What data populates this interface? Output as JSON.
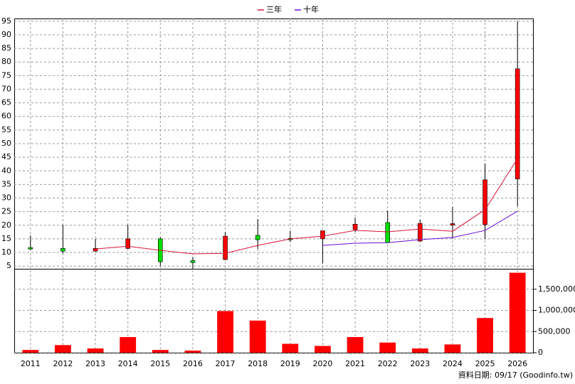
{
  "chart_data": {
    "type": "candlestick",
    "categories": [
      "2011",
      "2012",
      "2013",
      "2014",
      "2015",
      "2016",
      "2017",
      "2018",
      "2019",
      "2020",
      "2021",
      "2022",
      "2023",
      "2024",
      "2025",
      "2026"
    ],
    "open": [
      11.8,
      11.5,
      10.5,
      11.5,
      15.0,
      7.0,
      7.4,
      16.3,
      15.2,
      15.0,
      18.4,
      21.0,
      14.2,
      20.3,
      20.2,
      37.0
    ],
    "high": [
      16.3,
      20.2,
      15.0,
      20.2,
      15.5,
      8.4,
      17.6,
      22.3,
      18.0,
      18.0,
      22.8,
      25.4,
      22.0,
      26.7,
      42.7,
      95.0
    ],
    "low": [
      11.0,
      9.7,
      10.2,
      11.3,
      5.0,
      4.0,
      7.1,
      11.3,
      13.9,
      6.0,
      17.6,
      13.4,
      13.9,
      15.0,
      15.0,
      27.0
    ],
    "close": [
      11.6,
      10.5,
      11.5,
      15.0,
      6.6,
      6.3,
      16.0,
      14.7,
      15.0,
      18.0,
      20.4,
      13.6,
      20.7,
      20.6,
      36.7,
      77.5
    ],
    "up_color": "#ff0000",
    "down_color": "#00dd00",
    "wick_color": "#000000",
    "ylim": [
      4,
      96
    ],
    "yticks": [
      5,
      10,
      15,
      20,
      25,
      30,
      35,
      40,
      45,
      50,
      55,
      60,
      65,
      70,
      75,
      80,
      85,
      90,
      95
    ],
    "grid": true,
    "legend": "top",
    "series": [
      {
        "name": "三年",
        "color": "#dc143c",
        "values": [
          null,
          null,
          11.3,
          12.3,
          10.8,
          9.5,
          9.7,
          12.6,
          15.0,
          16.0,
          18.1,
          17.6,
          18.6,
          17.8,
          25.7,
          44.5
        ]
      },
      {
        "name": "十年",
        "color": "#6a0dd8",
        "values": [
          null,
          null,
          null,
          null,
          null,
          null,
          null,
          null,
          null,
          12.6,
          13.4,
          13.6,
          14.7,
          15.5,
          18.1,
          25.2
        ]
      }
    ],
    "volume": {
      "color": "#ff0000",
      "values": [
        65000,
        180000,
        100000,
        370000,
        65000,
        50000,
        985000,
        760000,
        210000,
        160000,
        370000,
        240000,
        100000,
        195000,
        820000,
        1890000
      ],
      "ylim": [
        0,
        1950000
      ],
      "yticks": [
        0,
        {
          "value": 500000,
          "label": "500,000"
        },
        {
          "value": 1000000,
          "label": "1,000,000"
        },
        {
          "value": 1500000,
          "label": "1,500,000"
        }
      ]
    },
    "source_note": "資料日期: 09/17 (Goodinfo.tw)"
  }
}
